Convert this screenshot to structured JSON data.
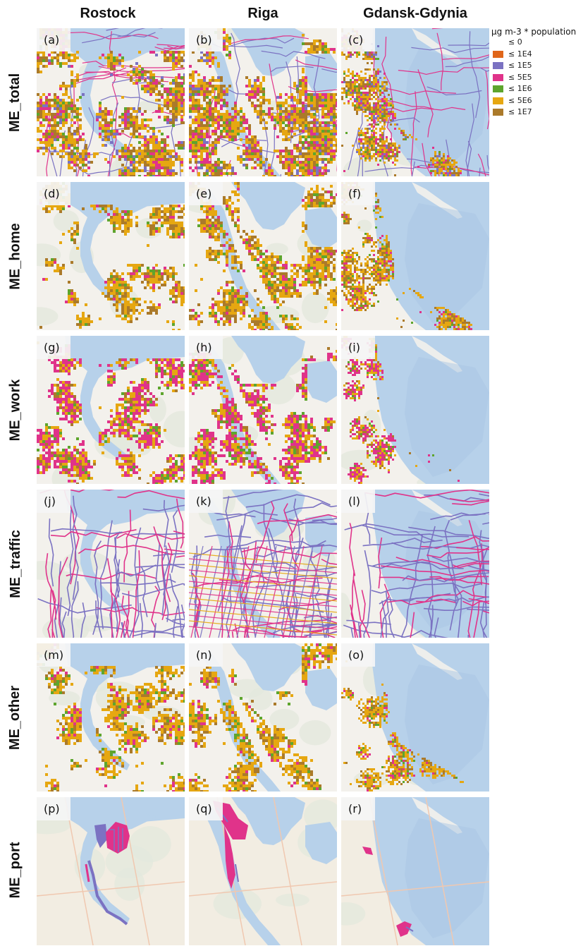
{
  "columns": [
    "Rostock",
    "Riga",
    "Gdansk-Gdynia"
  ],
  "rows": [
    "ME_total",
    "ME_home",
    "ME_work",
    "ME_traffic",
    "ME_other",
    "ME_port"
  ],
  "panel_letters": [
    "(a)",
    "(b)",
    "(c)",
    "(d)",
    "(e)",
    "(f)",
    "(g)",
    "(h)",
    "(i)",
    "(j)",
    "(k)",
    "(l)",
    "(m)",
    "(n)",
    "(o)",
    "(p)",
    "(q)",
    "(r)"
  ],
  "legend": {
    "title": "µg m-3 * population",
    "items": [
      {
        "label": "≤ 0",
        "color": "none"
      },
      {
        "label": "≤ 1E4",
        "color": "#e0661a"
      },
      {
        "label": "≤ 1E5",
        "color": "#7b72c2"
      },
      {
        "label": "≤ 5E5",
        "color": "#e0338a"
      },
      {
        "label": "≤ 1E6",
        "color": "#5ea52d"
      },
      {
        "label": "≤ 5E6",
        "color": "#e6a711"
      },
      {
        "label": "≤ 1E7",
        "color": "#ab7a2a"
      }
    ]
  },
  "colors": {
    "water": "#b7d1ea",
    "land": "#f3f1ec",
    "land_green": "#e3e9dd"
  }
}
